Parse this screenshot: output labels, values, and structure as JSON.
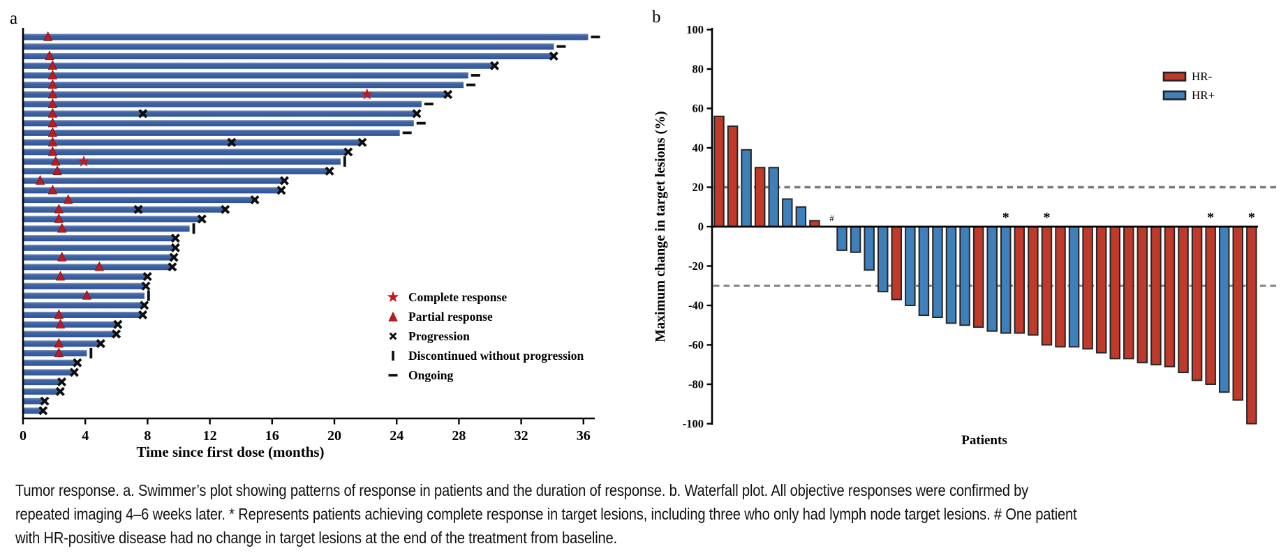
{
  "caption": "Tumor response. a. Swimmer’s plot showing patterns of response in patients and the duration of response. b. Waterfall plot. All objective responses were confirmed by repeated imaging 4–6 weeks later. * Represents patients achieving complete response in target lesions, including three who only had lymph node target lesions. # One patient with HR-positive disease had no change in target lesions at the end of the treatment from baseline.",
  "colors": {
    "swimmer_bar": "#3a5fa5",
    "marker_red": "#c01a1f",
    "hr_negative": "#bf3a2a",
    "hr_positive": "#3f7fba",
    "dashed_line": "#7a7a7a",
    "ink": "#111111"
  },
  "chart_data": [
    {
      "type": "bar",
      "name": "swimmers-plot",
      "panel_label": "a",
      "orientation": "horizontal",
      "xlabel": "Time since first dose (months)",
      "xlim": [
        0,
        36.6
      ],
      "x_ticks": [
        0,
        4,
        8,
        12,
        16,
        20,
        24,
        28,
        32,
        36
      ],
      "grid": false,
      "legend_position": "inside-lower-right",
      "legend": [
        {
          "symbol": "star",
          "label": "Complete response"
        },
        {
          "symbol": "triangle",
          "label": "Partial response"
        },
        {
          "symbol": "x",
          "label": "Progression"
        },
        {
          "symbol": "vbar",
          "label": "Discontinued without progression"
        },
        {
          "symbol": "dash",
          "label": "Ongoing"
        }
      ],
      "patients": [
        {
          "duration": 36.3,
          "partial_response_at": 1.6,
          "end": "ongoing"
        },
        {
          "duration": 34.1,
          "end": "ongoing"
        },
        {
          "duration": 34.0,
          "partial_response_at": 1.7,
          "end": "progression"
        },
        {
          "duration": 30.2,
          "partial_response_at": 1.9,
          "end": "progression"
        },
        {
          "duration": 28.6,
          "partial_response_at": 1.9,
          "end": "ongoing"
        },
        {
          "duration": 28.3,
          "partial_response_at": 1.9,
          "end": "ongoing"
        },
        {
          "duration": 27.2,
          "partial_response_at": 1.9,
          "complete_response_at": 22.1,
          "end": "progression"
        },
        {
          "duration": 25.6,
          "partial_response_at": 1.9,
          "end": "ongoing"
        },
        {
          "duration": 25.2,
          "partial_response_at": 1.9,
          "progression_at": [
            7.7
          ],
          "end": "progression"
        },
        {
          "duration": 25.1,
          "partial_response_at": 1.9,
          "end": "ongoing"
        },
        {
          "duration": 24.2,
          "partial_response_at": 1.9,
          "end": "ongoing"
        },
        {
          "duration": 21.7,
          "partial_response_at": 1.9,
          "progression_at": [
            13.4
          ],
          "end": "progression"
        },
        {
          "duration": 20.8,
          "partial_response_at": 1.9,
          "end": "progression"
        },
        {
          "duration": 20.4,
          "partial_response_at": 2.1,
          "complete_response_at": 3.9,
          "end": "discontinued"
        },
        {
          "duration": 19.6,
          "partial_response_at": 2.2,
          "end": "progression"
        },
        {
          "duration": 16.7,
          "partial_response_at": 1.1,
          "end": "progression"
        },
        {
          "duration": 16.5,
          "partial_response_at": 1.9,
          "end": "progression"
        },
        {
          "duration": 14.8,
          "partial_response_at": 2.9,
          "end": "progression"
        },
        {
          "duration": 12.9,
          "partial_response_at": 2.3,
          "progression_at": [
            7.4
          ],
          "end": "progression"
        },
        {
          "duration": 11.4,
          "partial_response_at": 2.3,
          "end": "progression"
        },
        {
          "duration": 10.7,
          "partial_response_at": 2.5,
          "end": "discontinued"
        },
        {
          "duration": 9.7,
          "end": "progression"
        },
        {
          "duration": 9.7,
          "end": "progression"
        },
        {
          "duration": 9.6,
          "partial_response_at": 2.5,
          "end": "progression"
        },
        {
          "duration": 9.5,
          "partial_response_at": 4.9,
          "end": "progression"
        },
        {
          "duration": 7.9,
          "partial_response_at": 2.4,
          "end": "progression"
        },
        {
          "duration": 7.8,
          "end": "progression"
        },
        {
          "duration": 7.8,
          "partial_response_at": 4.1,
          "end": "discontinued"
        },
        {
          "duration": 7.7,
          "end": "progression"
        },
        {
          "duration": 7.6,
          "partial_response_at": 2.3,
          "end": "progression"
        },
        {
          "duration": 6.0,
          "partial_response_at": 2.4,
          "end": "progression"
        },
        {
          "duration": 5.9,
          "end": "progression"
        },
        {
          "duration": 4.9,
          "partial_response_at": 2.3,
          "end": "progression"
        },
        {
          "duration": 4.1,
          "partial_response_at": 2.3,
          "end": "discontinued"
        },
        {
          "duration": 3.4,
          "end": "progression"
        },
        {
          "duration": 3.2,
          "end": "progression"
        },
        {
          "duration": 2.4,
          "end": "progression"
        },
        {
          "duration": 2.3,
          "end": "progression"
        },
        {
          "duration": 1.3,
          "end": "progression"
        },
        {
          "duration": 1.2,
          "end": "progression"
        }
      ]
    },
    {
      "type": "bar",
      "name": "waterfall-plot",
      "panel_label": "b",
      "ylabel": "Maximum change in target lesions (%)",
      "xlabel": "Patients",
      "ylim": [
        -100,
        100
      ],
      "y_ticks": [
        100,
        80,
        60,
        40,
        20,
        0,
        -20,
        -40,
        -60,
        -80,
        -100
      ],
      "reference_lines": [
        20,
        -30
      ],
      "grid": false,
      "legend_position": "upper-right",
      "legend": [
        {
          "label": "HR-",
          "group": "HR-"
        },
        {
          "label": "HR+",
          "group": "HR+"
        }
      ],
      "values": [
        {
          "value": 56,
          "group": "HR-"
        },
        {
          "value": 51,
          "group": "HR-"
        },
        {
          "value": 39,
          "group": "HR+"
        },
        {
          "value": 30,
          "group": "HR-"
        },
        {
          "value": 30,
          "group": "HR+"
        },
        {
          "value": 14,
          "group": "HR+"
        },
        {
          "value": 10,
          "group": "HR+"
        },
        {
          "value": 3,
          "group": "HR-"
        },
        {
          "value": 0,
          "group": "HR+",
          "annotation": "#"
        },
        {
          "value": -12,
          "group": "HR+"
        },
        {
          "value": -13,
          "group": "HR+"
        },
        {
          "value": -22,
          "group": "HR+"
        },
        {
          "value": -33,
          "group": "HR+"
        },
        {
          "value": -37,
          "group": "HR-"
        },
        {
          "value": -40,
          "group": "HR+"
        },
        {
          "value": -45,
          "group": "HR+"
        },
        {
          "value": -46,
          "group": "HR+"
        },
        {
          "value": -49,
          "group": "HR+"
        },
        {
          "value": -50,
          "group": "HR+"
        },
        {
          "value": -51,
          "group": "HR-"
        },
        {
          "value": -53,
          "group": "HR+"
        },
        {
          "value": -54,
          "group": "HR+",
          "annotation": "*"
        },
        {
          "value": -54,
          "group": "HR-"
        },
        {
          "value": -55,
          "group": "HR-"
        },
        {
          "value": -60,
          "group": "HR-",
          "annotation": "*"
        },
        {
          "value": -61,
          "group": "HR-"
        },
        {
          "value": -61,
          "group": "HR+"
        },
        {
          "value": -62,
          "group": "HR-"
        },
        {
          "value": -64,
          "group": "HR-"
        },
        {
          "value": -67,
          "group": "HR-"
        },
        {
          "value": -67,
          "group": "HR-"
        },
        {
          "value": -69,
          "group": "HR-"
        },
        {
          "value": -70,
          "group": "HR-"
        },
        {
          "value": -71,
          "group": "HR-"
        },
        {
          "value": -74,
          "group": "HR-"
        },
        {
          "value": -78,
          "group": "HR-"
        },
        {
          "value": -80,
          "group": "HR-",
          "annotation": "*"
        },
        {
          "value": -84,
          "group": "HR+"
        },
        {
          "value": -88,
          "group": "HR-"
        },
        {
          "value": -100,
          "group": "HR-",
          "annotation": "*"
        }
      ]
    }
  ]
}
